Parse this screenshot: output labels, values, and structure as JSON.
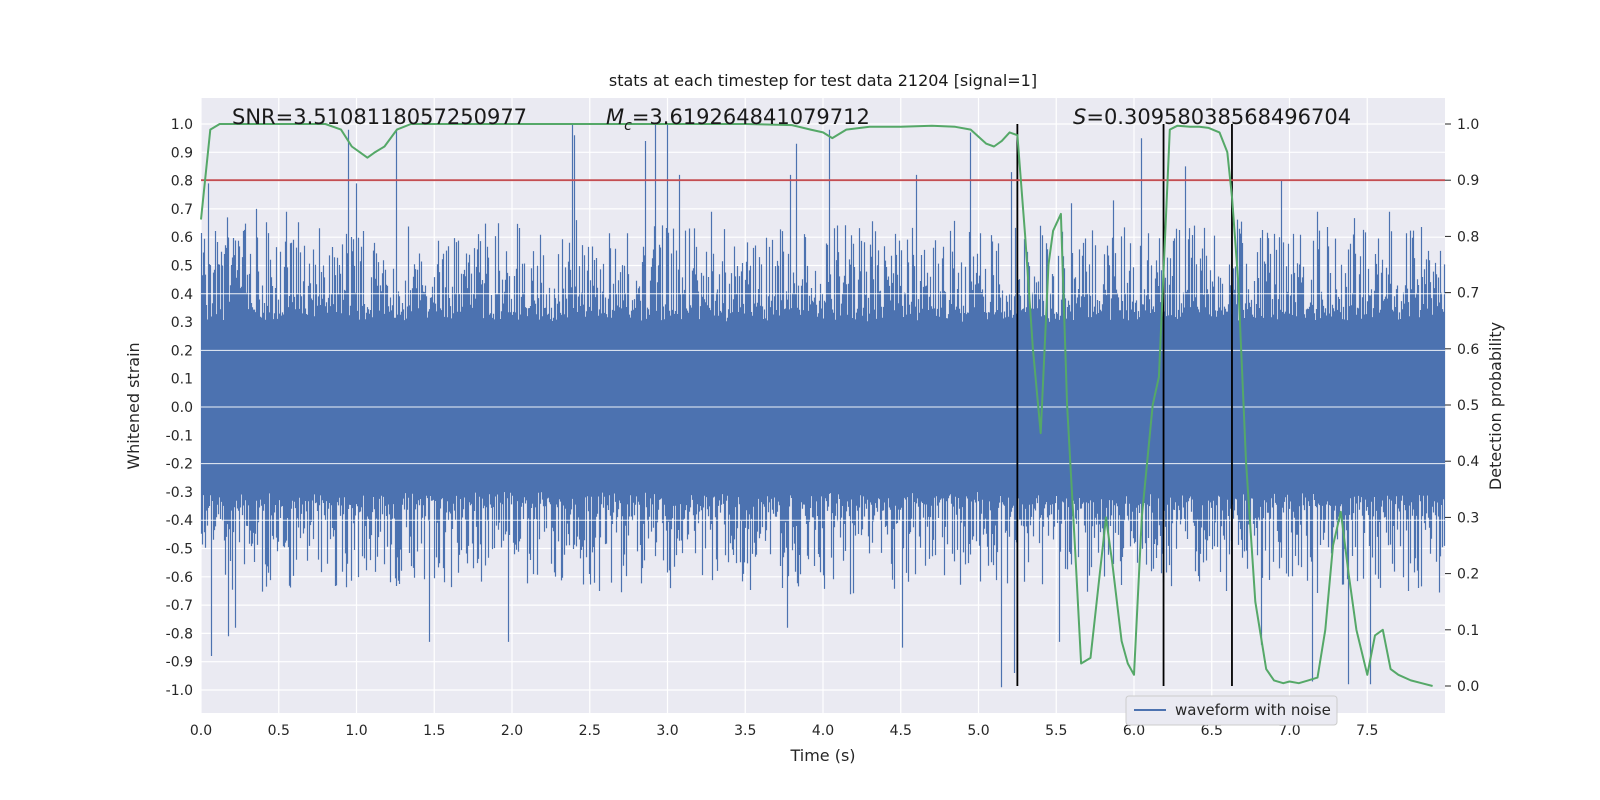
{
  "chart_data": {
    "type": "line",
    "title": "stats at each timestep for test data 21204 [signal=1]",
    "xlabel": "Time (s)",
    "ylabel": "Whitened strain",
    "ylabel_right": "Detection probability",
    "xlim": [
      0,
      8
    ],
    "ylim": [
      -1.1,
      1.1
    ],
    "ylim_right": [
      -0.05,
      1.05
    ],
    "xticks": [
      "0.0",
      "0.5",
      "1.0",
      "1.5",
      "2.0",
      "2.5",
      "3.0",
      "3.5",
      "4.0",
      "4.5",
      "5.0",
      "5.5",
      "6.0",
      "6.5",
      "7.0",
      "7.5"
    ],
    "xtick_values": [
      0,
      0.5,
      1,
      1.5,
      2,
      2.5,
      3,
      3.5,
      4,
      4.5,
      5,
      5.5,
      6,
      6.5,
      7,
      7.5
    ],
    "yticks": [
      "1.0",
      "0.9",
      "0.8",
      "0.7",
      "0.6",
      "0.5",
      "0.4",
      "0.3",
      "0.2",
      "0.1",
      "0.0",
      "-0.1",
      "-0.2",
      "-0.3",
      "-0.4",
      "-0.5",
      "-0.6",
      "-0.7",
      "-0.8",
      "-0.9",
      "-1.0"
    ],
    "ytick_values": [
      1,
      0.9,
      0.8,
      0.7,
      0.6,
      0.5,
      0.4,
      0.3,
      0.2,
      0.1,
      0,
      -0.1,
      -0.2,
      -0.3,
      -0.4,
      -0.5,
      -0.6,
      -0.7,
      -0.8,
      -0.9,
      -1.0
    ],
    "yticks_right": [
      "1.0",
      "0.9",
      "0.8",
      "0.7",
      "0.6",
      "0.5",
      "0.4",
      "0.3",
      "0.2",
      "0.1",
      "0.0"
    ],
    "ytick_right_values": [
      1,
      0.9,
      0.8,
      0.7,
      0.6,
      0.5,
      0.4,
      0.3,
      0.2,
      0.1,
      0
    ],
    "annotations": {
      "snr": "SNR=3.5108118057250977",
      "mc_symbol": "M",
      "mc_sub": "c",
      "mc_value": "=3.619264841079712",
      "s_symbol": "S",
      "s_value": "=0.30958038568496704"
    },
    "legend": {
      "label": "waveform with noise",
      "location": "lower-center-right"
    },
    "colors": {
      "waveform": "#4c72b0",
      "probability": "#55a868",
      "threshold": "#c44e52",
      "markers": "#000000",
      "background": "#eaeaf2",
      "grid": "#ffffff"
    },
    "threshold": {
      "axis": "right",
      "value": 0.9
    },
    "vertical_markers": [
      5.25,
      6.19,
      6.63
    ],
    "waveform": {
      "name": "waveform with noise",
      "sample_rate_hz": 2048,
      "duration_s": 8,
      "spikes": [
        [
          0.05,
          0.79
        ],
        [
          0.07,
          -0.88
        ],
        [
          0.17,
          0.67
        ],
        [
          0.18,
          -0.81
        ],
        [
          0.22,
          -0.78
        ],
        [
          0.36,
          0.7
        ],
        [
          0.55,
          0.69
        ],
        [
          0.95,
          0.98
        ],
        [
          1.0,
          0.79
        ],
        [
          1.26,
          0.98
        ],
        [
          1.47,
          -0.83
        ],
        [
          1.98,
          -0.83
        ],
        [
          2.39,
          1.0
        ],
        [
          2.4,
          0.96
        ],
        [
          2.86,
          0.94
        ],
        [
          2.92,
          1.0
        ],
        [
          3.0,
          1.0
        ],
        [
          3.08,
          0.82
        ],
        [
          3.28,
          0.69
        ],
        [
          3.77,
          -0.78
        ],
        [
          3.79,
          0.82
        ],
        [
          3.83,
          0.93
        ],
        [
          4.04,
          0.98
        ],
        [
          4.51,
          -0.85
        ],
        [
          4.6,
          0.82
        ],
        [
          4.95,
          0.97
        ],
        [
          5.15,
          -0.99
        ],
        [
          5.21,
          0.83
        ],
        [
          5.23,
          -0.94
        ],
        [
          5.52,
          -0.83
        ],
        [
          5.6,
          0.72
        ],
        [
          5.87,
          0.73
        ],
        [
          6.05,
          0.95
        ],
        [
          6.33,
          0.85
        ],
        [
          6.68,
          0.63
        ],
        [
          6.82,
          -0.84
        ],
        [
          6.95,
          0.8
        ],
        [
          7.15,
          -0.97
        ],
        [
          7.18,
          0.69
        ],
        [
          7.38,
          -0.98
        ],
        [
          7.52,
          -0.98
        ],
        [
          7.64,
          0.69
        ]
      ]
    },
    "detection_probability": {
      "name": "Detection probability",
      "x": [
        0.0,
        0.06,
        0.12,
        0.2,
        0.4,
        0.6,
        0.8,
        0.9,
        0.97,
        1.02,
        1.07,
        1.12,
        1.18,
        1.26,
        1.35,
        1.6,
        2.0,
        2.5,
        3.0,
        3.5,
        3.8,
        3.92,
        4.0,
        4.06,
        4.15,
        4.3,
        4.5,
        4.7,
        4.85,
        4.95,
        5.05,
        5.1,
        5.15,
        5.2,
        5.25,
        5.3,
        5.35,
        5.4,
        5.45,
        5.48,
        5.53,
        5.57,
        5.62,
        5.66,
        5.72,
        5.76,
        5.82,
        5.86,
        5.92,
        5.96,
        6.0,
        6.05,
        6.12,
        6.16,
        6.2,
        6.23,
        6.28,
        6.32,
        6.36,
        6.42,
        6.48,
        6.55,
        6.6,
        6.63,
        6.67,
        6.72,
        6.78,
        6.85,
        6.9,
        6.96,
        7.0,
        7.06,
        7.12,
        7.18,
        7.23,
        7.28,
        7.33,
        7.38,
        7.43,
        7.5,
        7.55,
        7.6,
        7.65,
        7.7,
        7.78,
        7.85,
        7.92
      ],
      "y": [
        0.83,
        0.99,
        1.0,
        1.0,
        1.0,
        1.0,
        1.0,
        0.99,
        0.96,
        0.95,
        0.94,
        0.95,
        0.96,
        0.99,
        1.0,
        1.0,
        1.0,
        1.0,
        1.0,
        1.0,
        0.998,
        0.99,
        0.985,
        0.975,
        0.99,
        0.995,
        0.995,
        0.997,
        0.995,
        0.99,
        0.965,
        0.96,
        0.97,
        0.985,
        0.98,
        0.8,
        0.6,
        0.45,
        0.75,
        0.81,
        0.84,
        0.5,
        0.25,
        0.04,
        0.05,
        0.15,
        0.3,
        0.22,
        0.08,
        0.04,
        0.02,
        0.3,
        0.5,
        0.55,
        0.8,
        0.99,
        0.997,
        0.996,
        0.995,
        0.995,
        0.993,
        0.985,
        0.95,
        0.87,
        0.72,
        0.4,
        0.15,
        0.03,
        0.01,
        0.005,
        0.008,
        0.005,
        0.01,
        0.015,
        0.1,
        0.25,
        0.31,
        0.2,
        0.1,
        0.02,
        0.09,
        0.1,
        0.03,
        0.02,
        0.01,
        0.005,
        0.0
      ]
    }
  }
}
